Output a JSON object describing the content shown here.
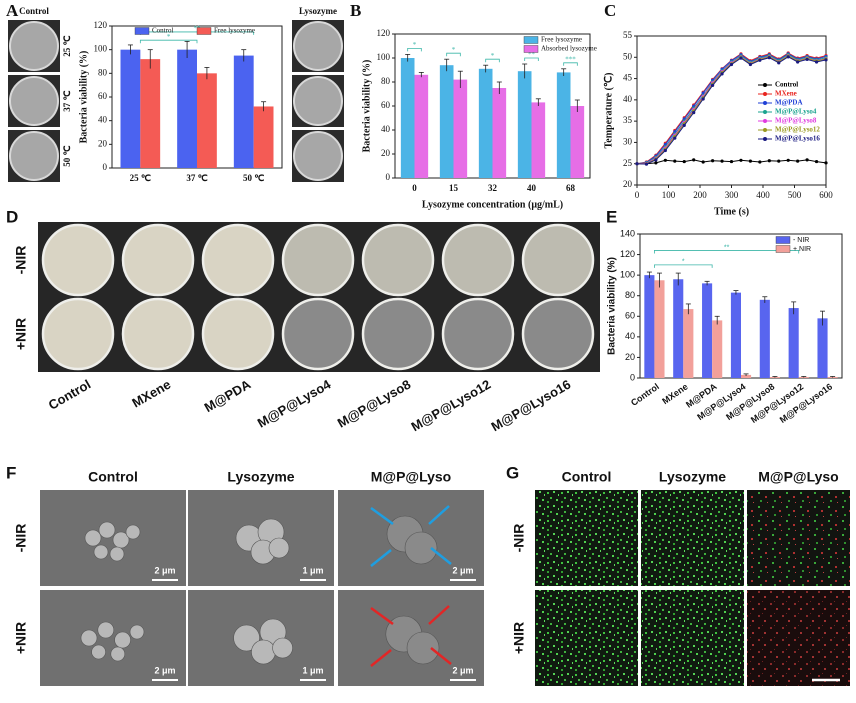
{
  "chart_data": [
    {
      "type": "bar",
      "label": "A",
      "ylabel": "Bacteria viability (%)",
      "categories": [
        "25 ℃",
        "37 ℃",
        "50 ℃"
      ],
      "series": [
        {
          "name": "Control",
          "color": "#4b63f0",
          "values": [
            100,
            100,
            95
          ],
          "errors": [
            4,
            7,
            5
          ]
        },
        {
          "name": "Free lysozyme",
          "color": "#f45b55",
          "values": [
            92,
            80,
            52
          ],
          "errors": [
            8,
            5,
            4
          ]
        }
      ],
      "ylim": [
        0,
        120
      ],
      "yticks": [
        0,
        20,
        40,
        60,
        80,
        100,
        120
      ],
      "legend": "upper center",
      "significance": [
        "*",
        "**"
      ]
    },
    {
      "type": "bar",
      "label": "B",
      "ylabel": "Bacteria viability (%)",
      "xlabel": "Lysozyme concentration (μg/mL)",
      "categories": [
        "0",
        "15",
        "32",
        "40",
        "68"
      ],
      "series": [
        {
          "name": "Free lysozyme",
          "color": "#4bb4e6",
          "values": [
            100,
            94,
            91,
            89,
            88
          ],
          "errors": [
            3,
            5,
            3,
            6,
            3
          ]
        },
        {
          "name": "Absorbed lysozyme",
          "color": "#e66ee6",
          "values": [
            86,
            82,
            75,
            63,
            60
          ],
          "errors": [
            2,
            7,
            5,
            3,
            5
          ]
        }
      ],
      "ylim": [
        0,
        120
      ],
      "yticks": [
        0,
        20,
        40,
        60,
        80,
        100,
        120
      ],
      "legend": "upper right",
      "significance": [
        "*",
        "*",
        "*",
        "**",
        "***"
      ]
    },
    {
      "type": "line",
      "label": "C",
      "ylabel": "Temperature (℃)",
      "xlabel": "Time (s)",
      "x": [
        0,
        30,
        60,
        90,
        120,
        150,
        180,
        210,
        240,
        270,
        300,
        330,
        360,
        390,
        420,
        450,
        480,
        510,
        540,
        570,
        600
      ],
      "series": [
        {
          "name": "Control",
          "color": "#000000",
          "values": [
            25,
            25,
            25.2,
            25.8,
            25.6,
            25.5,
            25.9,
            25.4,
            25.7,
            25.6,
            25.5,
            25.8,
            25.6,
            25.4,
            25.7,
            25.6,
            25.8,
            25.6,
            25.9,
            25.5,
            25.2
          ]
        },
        {
          "name": "MXene",
          "color": "#e8231e",
          "values": [
            25,
            25.4,
            27,
            29.8,
            32.8,
            35.8,
            38.8,
            41.8,
            44.8,
            47.3,
            49.3,
            50.8,
            49.2,
            50.2,
            50.8,
            49.6,
            51,
            49.8,
            50.4,
            49.8,
            50.4
          ]
        },
        {
          "name": "M@PDA",
          "color": "#1f3fd6",
          "values": [
            25,
            25.3,
            26.8,
            29.5,
            32.5,
            35.5,
            38.5,
            41.6,
            44.6,
            47.2,
            49.2,
            50.6,
            49,
            50,
            50.6,
            49.4,
            50.8,
            49.6,
            50.2,
            49.6,
            50.2
          ]
        },
        {
          "name": "M@P@Lyso4",
          "color": "#1aa38f",
          "values": [
            25,
            25.2,
            26.5,
            29,
            32,
            35,
            38,
            41,
            44.2,
            46.8,
            48.9,
            50.3,
            48.8,
            49.8,
            50.4,
            49.2,
            50.6,
            49.4,
            50,
            49.4,
            49.9
          ]
        },
        {
          "name": "M@P@Lyso8",
          "color": "#e03be0",
          "values": [
            25,
            25.1,
            26.3,
            28.7,
            31.7,
            34.7,
            37.7,
            40.8,
            44,
            46.6,
            48.7,
            50.1,
            48.6,
            49.6,
            50.2,
            49,
            50.4,
            49.2,
            49.8,
            49.2,
            49.7
          ]
        },
        {
          "name": "M@P@Lyso12",
          "color": "#9a9a20",
          "values": [
            25,
            25,
            26.1,
            28.4,
            31.4,
            34.4,
            37.4,
            40.5,
            43.7,
            46.4,
            48.5,
            50,
            48.5,
            49.5,
            50.1,
            48.9,
            50.3,
            49.1,
            49.7,
            49.1,
            49.6
          ]
        },
        {
          "name": "M@P@Lyso16",
          "color": "#1a1a80",
          "values": [
            25,
            24.9,
            25.9,
            28.1,
            31,
            34,
            37,
            40.2,
            43.4,
            46.1,
            48.3,
            49.8,
            48.3,
            49.3,
            49.9,
            48.7,
            50.1,
            48.9,
            49.5,
            48.9,
            49.4
          ]
        }
      ],
      "xlim": [
        0,
        600
      ],
      "xticks": [
        0,
        100,
        200,
        300,
        400,
        500,
        600
      ],
      "ylim": [
        20,
        55
      ],
      "yticks": [
        20,
        25,
        30,
        35,
        40,
        45,
        50,
        55
      ],
      "legend": "center right"
    },
    {
      "type": "bar",
      "label": "E",
      "ylabel": "Bacteria viability (%)",
      "categories": [
        "Control",
        "MXene",
        "M@PDA",
        "M@P@Lyso4",
        "M@P@Lyso8",
        "M@P@Lyso12",
        "M@P@Lyso16"
      ],
      "series": [
        {
          "name": "- NIR",
          "color": "#5865ef",
          "values": [
            100,
            96,
            92,
            83,
            76,
            68,
            58
          ],
          "errors": [
            3,
            6,
            2,
            2,
            3,
            6,
            7
          ]
        },
        {
          "name": "+ NIR",
          "color": "#f2a09a",
          "values": [
            95,
            67,
            56,
            3,
            1,
            1,
            1
          ],
          "errors": [
            7,
            5,
            4,
            1,
            0.5,
            0.5,
            0.5
          ]
        }
      ],
      "ylim": [
        0,
        140
      ],
      "yticks": [
        0,
        20,
        40,
        60,
        80,
        100,
        120,
        140
      ],
      "legend": "upper right",
      "significance": [
        "*",
        "**"
      ]
    }
  ],
  "panel_A_photos": {
    "left_title": "Control",
    "right_title": "Lysozyme",
    "rows": [
      "25 ℃",
      "37 ℃",
      "50 ℃"
    ]
  },
  "panel_D": {
    "label": "D",
    "rows": [
      "-NIR",
      "+NIR"
    ],
    "columns": [
      "Control",
      "MXene",
      "M@PDA",
      "M@P@Lyso4",
      "M@P@Lyso8",
      "M@P@Lyso12",
      "M@P@Lyso16"
    ]
  },
  "panel_F": {
    "label": "F",
    "columns": [
      "Control",
      "Lysozyme",
      "M@P@Lyso"
    ],
    "rows": [
      "-NIR",
      "+NIR"
    ],
    "scale_bars": [
      [
        "2 μm",
        "1 μm",
        "2 μm"
      ],
      [
        "2 μm",
        "1 μm",
        "2 μm"
      ]
    ]
  },
  "panel_G": {
    "label": "G",
    "columns": [
      "Control",
      "Lysozyme",
      "M@P@Lyso"
    ],
    "rows": [
      "-NIR",
      "+NIR"
    ]
  }
}
